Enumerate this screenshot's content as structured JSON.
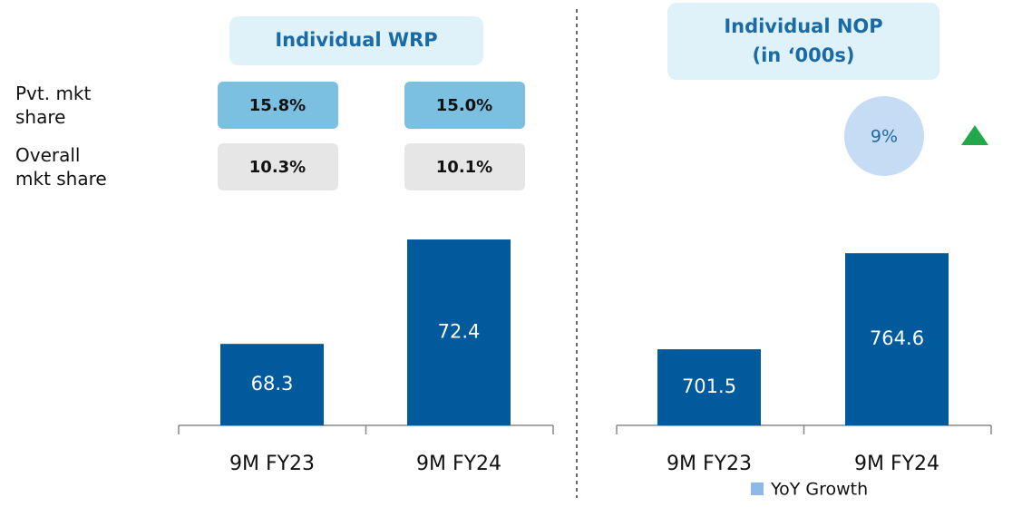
{
  "chart_data": [
    {
      "type": "bar",
      "title": "Individual WRP",
      "categories": [
        "9M FY23",
        "9M FY24"
      ],
      "values": [
        68.3,
        72.4
      ],
      "color": "#005a9c",
      "ylim": [
        65.1,
        72.9
      ],
      "rows": [
        {
          "name": "Pvt. mkt share",
          "values": [
            15.8,
            15.0
          ],
          "value_labels": [
            "15.8%",
            "15.0%"
          ],
          "color": "#7bc0e0"
        },
        {
          "name": "Overall mkt share",
          "values": [
            10.3,
            10.1
          ],
          "value_labels": [
            "10.3%",
            "10.1%"
          ],
          "color": "#e6e6e6"
        }
      ]
    },
    {
      "type": "bar",
      "title": "Individual NOP",
      "subtitle": "(in ‘000s)",
      "categories": [
        "9M FY23",
        "9M FY24"
      ],
      "values": [
        701.5,
        764.6
      ],
      "color": "#005a9c",
      "ylim": [
        651.5,
        782
      ],
      "growth": {
        "name": "YoY Growth",
        "values": [
          9
        ],
        "value_labels": [
          "9%"
        ],
        "color": "#c6dbf4",
        "marker_color": "#8db8e8",
        "trend": "up",
        "trend_color": "#22a84a"
      }
    }
  ]
}
